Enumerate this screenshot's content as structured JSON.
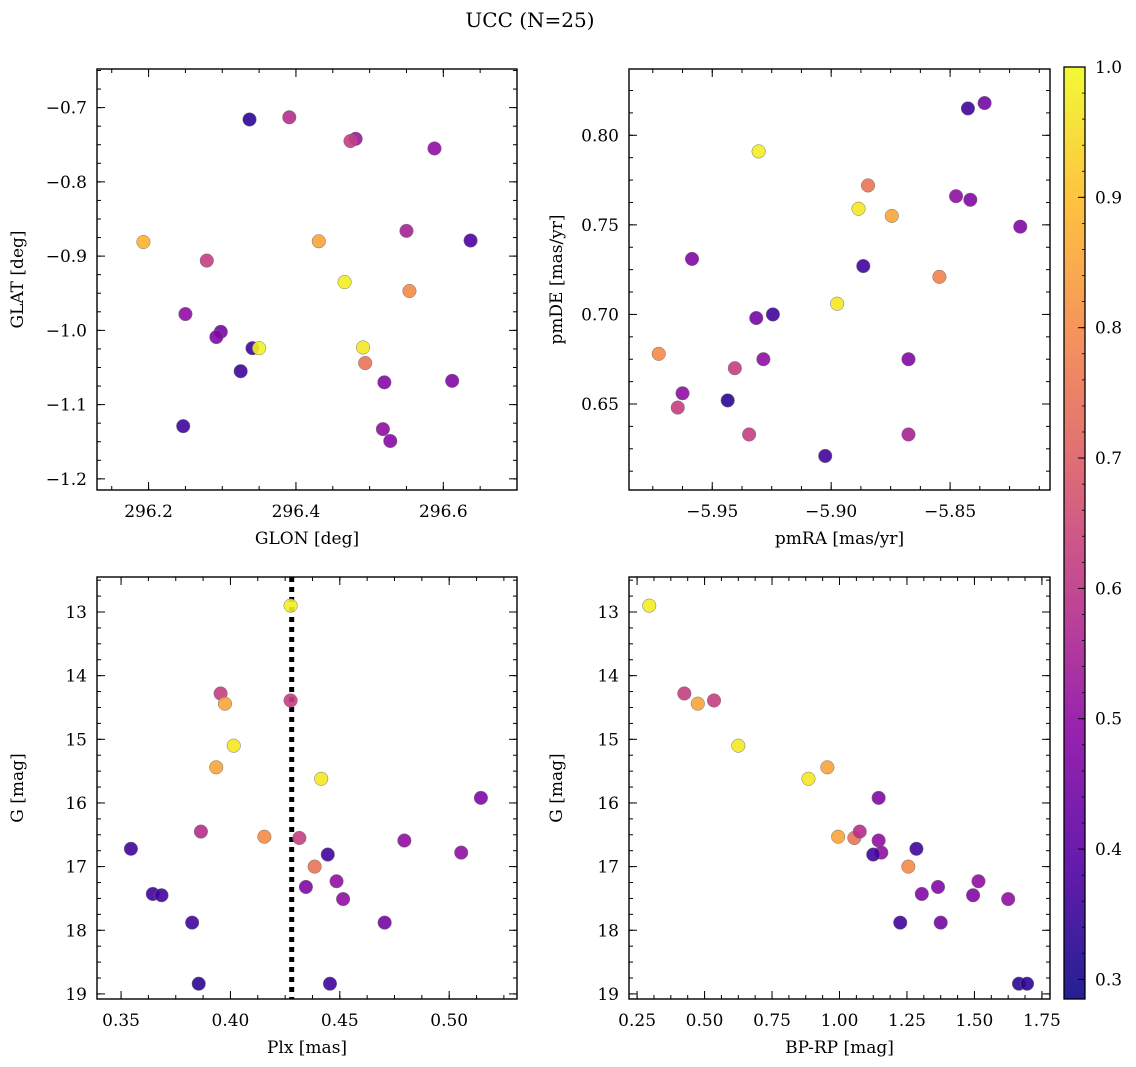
{
  "figure": {
    "title": "UCC (N=25)",
    "colorbar": {
      "min": 0.285,
      "max": 1.0,
      "ticks": [
        0.3,
        0.4,
        0.5,
        0.6,
        0.7,
        0.8,
        0.9,
        1.0
      ],
      "tick_labels": [
        "0.3",
        "0.4",
        "0.5",
        "0.6",
        "0.7",
        "0.8",
        "0.9",
        "1.0"
      ],
      "colormap": "plasma"
    },
    "marker_color_domain": "membership probability (unlabeled colorbar)"
  },
  "chart_data": [
    {
      "id": "glon_glat",
      "type": "scatter",
      "xlabel": "GLON [deg]",
      "ylabel": "GLAT [deg]",
      "xlim": [
        296.13,
        296.7
      ],
      "ylim": [
        -1.215,
        -0.648
      ],
      "y_inverted": false,
      "xticks": [
        296.2,
        296.4,
        296.6
      ],
      "xtick_labels": [
        "296.2",
        "296.4",
        "296.6"
      ],
      "yticks": [
        -1.2,
        -1.1,
        -1.0,
        -0.9,
        -0.8,
        -0.7
      ],
      "ytick_labels": [
        "−1.2",
        "−1.1",
        "−1.0",
        "−0.9",
        "−0.8",
        "−0.7"
      ],
      "x": [
        296.337,
        296.391,
        296.481,
        296.474,
        296.588,
        296.55,
        296.637,
        296.193,
        296.431,
        296.279,
        296.554,
        296.466,
        296.25,
        296.298,
        296.292,
        296.341,
        296.35,
        296.491,
        296.494,
        296.325,
        296.52,
        296.612,
        296.247,
        296.518,
        296.528
      ],
      "y": [
        -0.716,
        -0.713,
        -0.742,
        -0.745,
        -0.755,
        -0.866,
        -0.879,
        -0.881,
        -0.88,
        -0.906,
        -0.947,
        -0.935,
        -0.978,
        -1.002,
        -1.009,
        -1.024,
        -1.024,
        -1.023,
        -1.044,
        -1.055,
        -1.07,
        -1.068,
        -1.129,
        -1.133,
        -1.149
      ],
      "c": [
        0.33,
        0.58,
        0.52,
        0.62,
        0.5,
        0.55,
        0.38,
        0.88,
        0.85,
        0.62,
        0.8,
        0.98,
        0.5,
        0.45,
        0.47,
        0.36,
        0.99,
        0.97,
        0.75,
        0.36,
        0.48,
        0.47,
        0.36,
        0.5,
        0.48
      ]
    },
    {
      "id": "pm",
      "type": "scatter",
      "xlabel": "pmRA [mas/yr]",
      "ylabel": "pmDE [mas/yr]",
      "xlim": [
        -5.985,
        -5.808
      ],
      "ylim": [
        0.602,
        0.837
      ],
      "y_inverted": false,
      "xticks": [
        -5.95,
        -5.9,
        -5.85
      ],
      "xtick_labels": [
        "−5.95",
        "−5.90",
        "−5.85"
      ],
      "yticks": [
        0.65,
        0.7,
        0.75,
        0.8
      ],
      "ytick_labels": [
        "0.65",
        "0.70",
        "0.75",
        "0.80"
      ],
      "x": [
        -5.9305,
        -5.8355,
        -5.8425,
        -5.8845,
        -5.8475,
        -5.8415,
        -5.8865,
        -5.8745,
        -5.8205,
        -5.9585,
        -5.8545,
        -5.8885,
        -5.8975,
        -5.9245,
        -5.9315,
        -5.9725,
        -5.9285,
        -5.8675,
        -5.9405,
        -5.9625,
        -5.9645,
        -5.9435,
        -5.9345,
        -5.8675,
        -5.9025
      ],
      "y": [
        0.791,
        0.818,
        0.815,
        0.772,
        0.766,
        0.764,
        0.727,
        0.755,
        0.749,
        0.731,
        0.721,
        0.759,
        0.706,
        0.7,
        0.698,
        0.678,
        0.675,
        0.675,
        0.67,
        0.656,
        0.648,
        0.652,
        0.633,
        0.633,
        0.621
      ],
      "c": [
        0.98,
        0.45,
        0.36,
        0.75,
        0.5,
        0.47,
        0.36,
        0.85,
        0.47,
        0.47,
        0.78,
        0.97,
        0.97,
        0.36,
        0.45,
        0.8,
        0.5,
        0.47,
        0.62,
        0.5,
        0.62,
        0.33,
        0.62,
        0.55,
        0.36
      ]
    },
    {
      "id": "plx_g",
      "type": "scatter",
      "xlabel": "Plx [mas]",
      "ylabel": "G [mag]",
      "xlim": [
        0.339,
        0.531
      ],
      "ylim": [
        12.45,
        19.08
      ],
      "y_inverted": true,
      "xticks": [
        0.35,
        0.4,
        0.45,
        0.5
      ],
      "xtick_labels": [
        "0.35",
        "0.40",
        "0.45",
        "0.50"
      ],
      "yticks": [
        13,
        14,
        15,
        16,
        17,
        18,
        19
      ],
      "ytick_labels": [
        "13",
        "14",
        "15",
        "16",
        "17",
        "18",
        "19"
      ],
      "vline": {
        "x": 0.428,
        "style": "dotted"
      },
      "x": [
        0.4275,
        0.3955,
        0.3975,
        0.4275,
        0.4015,
        0.3935,
        0.4415,
        0.3865,
        0.4155,
        0.4315,
        0.4385,
        0.4445,
        0.4795,
        0.5055,
        0.5145,
        0.3545,
        0.3645,
        0.3685,
        0.4345,
        0.4485,
        0.4515,
        0.3825,
        0.4705,
        0.3855,
        0.4455
      ],
      "y": [
        12.9,
        14.28,
        14.44,
        14.39,
        15.1,
        15.44,
        15.62,
        16.45,
        16.53,
        16.55,
        17.0,
        16.81,
        16.59,
        16.78,
        15.92,
        16.72,
        17.43,
        17.45,
        17.32,
        17.23,
        17.51,
        17.88,
        17.88,
        18.84,
        18.84
      ],
      "c": [
        0.98,
        0.62,
        0.85,
        0.62,
        0.97,
        0.85,
        0.97,
        0.58,
        0.8,
        0.62,
        0.75,
        0.36,
        0.5,
        0.5,
        0.47,
        0.36,
        0.36,
        0.36,
        0.47,
        0.5,
        0.5,
        0.36,
        0.45,
        0.33,
        0.36
      ]
    },
    {
      "id": "cmd",
      "type": "scatter",
      "xlabel": "BP-RP [mag]",
      "ylabel": "G [mag]",
      "xlim": [
        0.22,
        1.78
      ],
      "ylim": [
        12.45,
        19.08
      ],
      "y_inverted": true,
      "xticks": [
        0.25,
        0.5,
        0.75,
        1.0,
        1.25,
        1.5,
        1.75
      ],
      "xtick_labels": [
        "0.25",
        "0.50",
        "0.75",
        "1.00",
        "1.25",
        "1.50",
        "1.75"
      ],
      "yticks": [
        13,
        14,
        15,
        16,
        17,
        18,
        19
      ],
      "ytick_labels": [
        "13",
        "14",
        "15",
        "16",
        "17",
        "18",
        "19"
      ],
      "x": [
        0.295,
        0.425,
        0.475,
        0.535,
        0.625,
        0.885,
        0.955,
        1.145,
        0.995,
        1.055,
        1.075,
        1.145,
        1.155,
        1.125,
        1.285,
        1.255,
        1.305,
        1.365,
        1.515,
        1.495,
        1.625,
        1.225,
        1.375,
        1.665,
        1.695
      ],
      "y": [
        12.9,
        14.28,
        14.44,
        14.39,
        15.1,
        15.62,
        15.44,
        15.92,
        16.53,
        16.55,
        16.45,
        16.59,
        16.78,
        16.81,
        16.72,
        17.0,
        17.43,
        17.32,
        17.23,
        17.45,
        17.51,
        17.88,
        17.88,
        18.84,
        18.84
      ],
      "c": [
        0.98,
        0.62,
        0.85,
        0.62,
        0.97,
        0.97,
        0.85,
        0.47,
        0.85,
        0.75,
        0.58,
        0.5,
        0.5,
        0.36,
        0.36,
        0.8,
        0.47,
        0.47,
        0.5,
        0.47,
        0.5,
        0.36,
        0.45,
        0.33,
        0.33
      ]
    }
  ]
}
